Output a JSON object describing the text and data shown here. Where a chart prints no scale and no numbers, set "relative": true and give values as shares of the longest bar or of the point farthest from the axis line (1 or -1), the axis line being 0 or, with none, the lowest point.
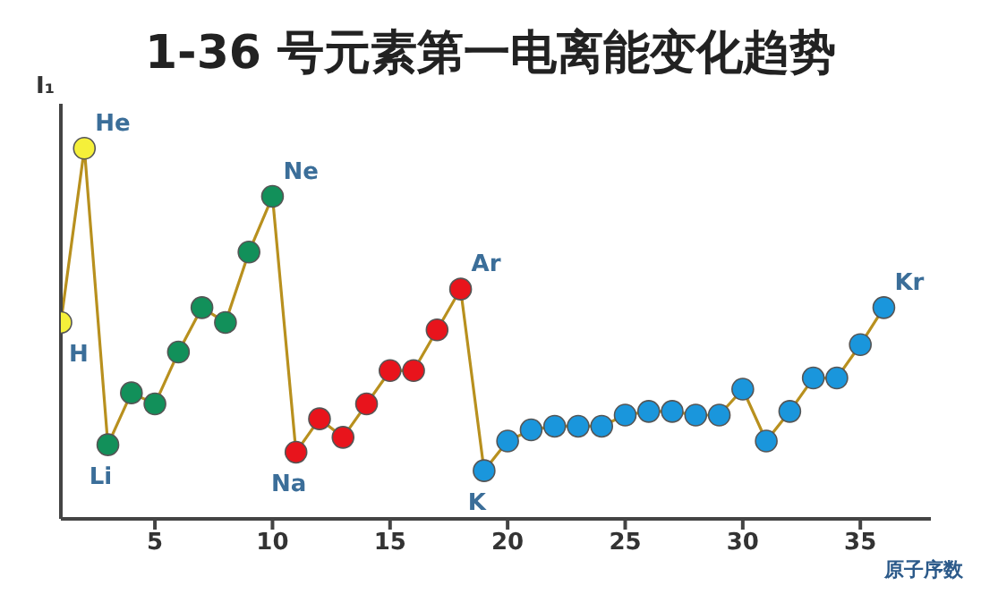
{
  "chart_data": {
    "type": "line",
    "title": "1-36 号元素第一电离能变化趋势",
    "xlabel": "原子序数",
    "ylabel": "I₁",
    "relative": true,
    "marker": "circle",
    "x": [
      1,
      2,
      3,
      4,
      5,
      6,
      7,
      8,
      9,
      10,
      11,
      12,
      13,
      14,
      15,
      16,
      17,
      18,
      19,
      20,
      21,
      22,
      23,
      24,
      25,
      26,
      27,
      28,
      29,
      30,
      31,
      32,
      33,
      34,
      35,
      36
    ],
    "xlim": [
      1,
      38
    ],
    "xticks": [
      5,
      10,
      15,
      20,
      25,
      30,
      35
    ],
    "series": [
      {
        "color": "#b8901e",
        "values": [
          0.53,
          1,
          0.2,
          0.34,
          0.31,
          0.45,
          0.57,
          0.53,
          0.72,
          0.87,
          0.18,
          0.27,
          0.22,
          0.31,
          0.4,
          0.4,
          0.51,
          0.62,
          0.13,
          0.21,
          0.24,
          0.25,
          0.25,
          0.25,
          0.28,
          0.29,
          0.29,
          0.28,
          0.28,
          0.35,
          0.21,
          0.29,
          0.38,
          0.38,
          0.47,
          0.57
        ],
        "colors": [
          "#f5f03a",
          "#f5f03a",
          "#12905a",
          "#12905a",
          "#12905a",
          "#12905a",
          "#12905a",
          "#12905a",
          "#12905a",
          "#12905a",
          "#e8141c",
          "#e8141c",
          "#e8141c",
          "#e8141c",
          "#e8141c",
          "#e8141c",
          "#e8141c",
          "#e8141c",
          "#1a96dc",
          "#1a96dc",
          "#1a96dc",
          "#1a96dc",
          "#1a96dc",
          "#1a96dc",
          "#1a96dc",
          "#1a96dc",
          "#1a96dc",
          "#1a96dc",
          "#1a96dc",
          "#1a96dc",
          "#1a96dc",
          "#1a96dc",
          "#1a96dc",
          "#1a96dc",
          "#1a96dc",
          "#1a96dc"
        ]
      }
    ],
    "annotations": [
      {
        "text": "H",
        "x": 1,
        "y": 0.53
      },
      {
        "text": "He",
        "x": 2,
        "y": 1
      },
      {
        "text": "Li",
        "x": 3,
        "y": 0.2
      },
      {
        "text": "Ne",
        "x": 10,
        "y": 0.87
      },
      {
        "text": "Na",
        "x": 11,
        "y": 0.18
      },
      {
        "text": "Ar",
        "x": 18,
        "y": 0.62
      },
      {
        "text": "K",
        "x": 19,
        "y": 0.13
      },
      {
        "text": "Kr",
        "x": 36,
        "y": 0.57
      }
    ]
  }
}
